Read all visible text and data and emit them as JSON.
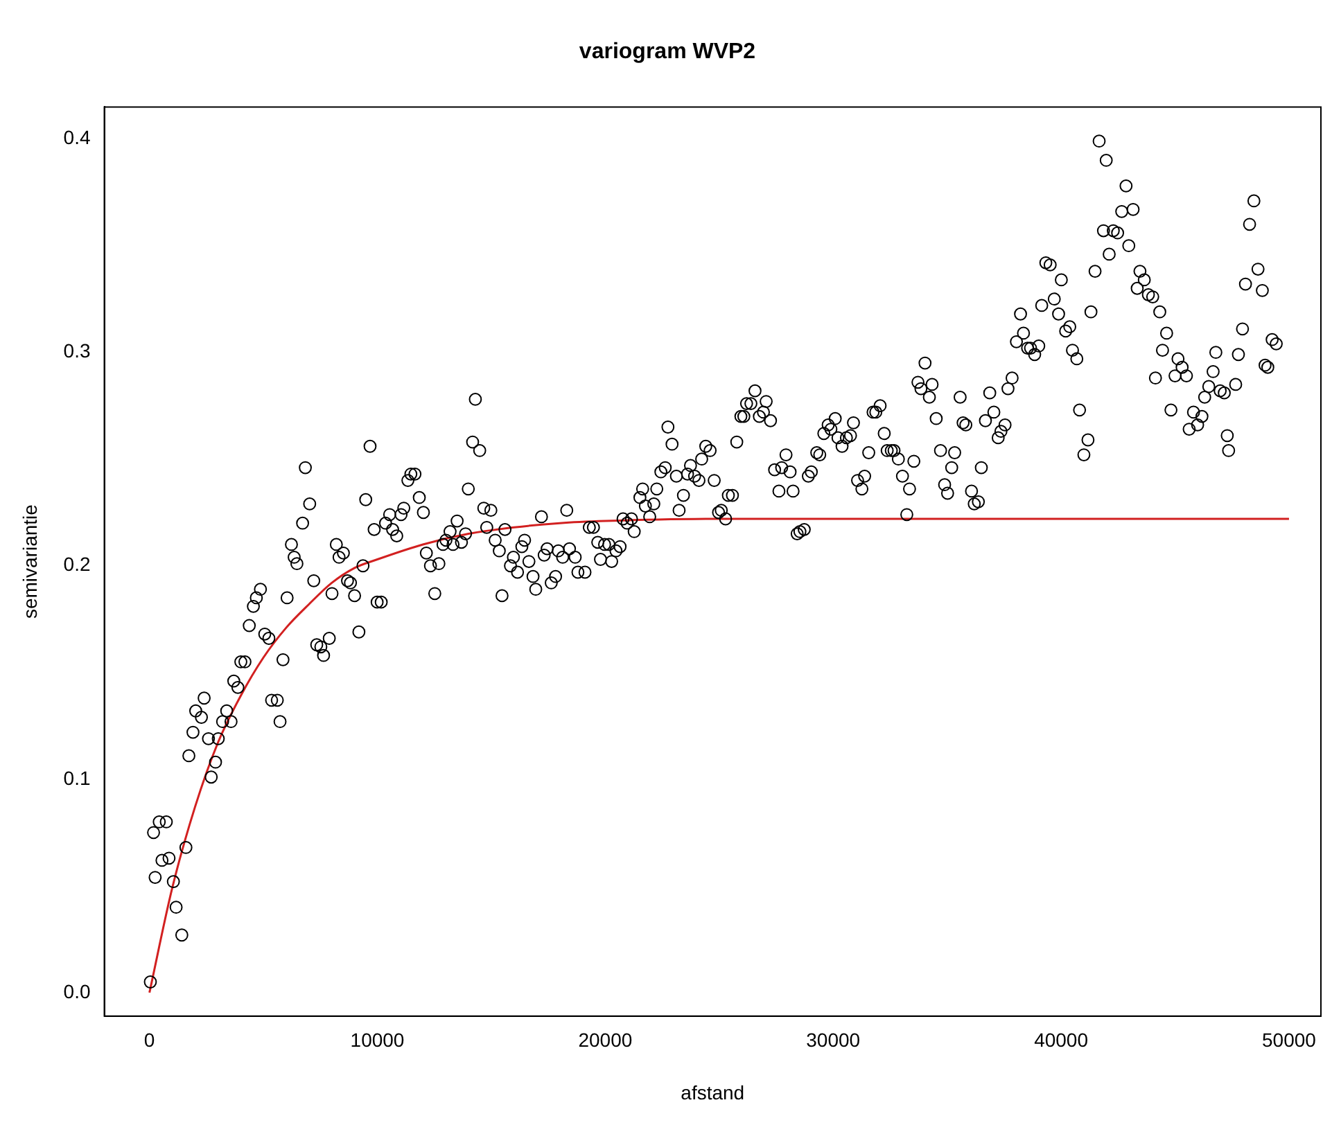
{
  "chart_data": {
    "type": "scatter",
    "title": "variogram WVP2",
    "xlabel": "afstand",
    "ylabel": "semivariantie",
    "xlim": [
      -1980,
      51400
    ],
    "xticks": [
      0,
      10000,
      20000,
      30000,
      40000,
      50000
    ],
    "ylim": [
      -0.011,
      0.415
    ],
    "yticks": [
      {
        "value": 0,
        "label": "0.0"
      },
      0.1,
      0.2,
      0.3,
      0.4
    ],
    "grid": false,
    "legend": false,
    "marker": "circle",
    "series": [
      {
        "color": "#000000",
        "x": [
          40,
          1420,
          1170,
          1050,
          1600,
          250,
          550,
          860,
          180,
          430,
          740,
          1730,
          1910,
          2030,
          2280,
          2400,
          2590,
          2710,
          2900,
          3020,
          3210,
          3390,
          3580,
          3700,
          3880,
          4010,
          4190,
          4380,
          4560,
          4690,
          4870,
          5060,
          5240,
          5360,
          5610,
          5730,
          5860,
          6040,
          6230,
          6350,
          6470,
          6720,
          6840,
          7030,
          7210,
          7340,
          7520,
          7640,
          7890,
          8010,
          8200,
          8320,
          8510,
          8690,
          8820,
          9000,
          9190,
          9370,
          9490,
          9680,
          9860,
          9990,
          10170,
          10360,
          10540,
          10670,
          10850,
          11040,
          11160,
          11340,
          11470,
          11650,
          11840,
          12020,
          12150,
          12330,
          12520,
          12700,
          12880,
          13010,
          13190,
          13320,
          13500,
          13690,
          13870,
          13990,
          14180,
          14300,
          14490,
          14670,
          14800,
          14980,
          15170,
          15350,
          15470,
          15600,
          15840,
          15970,
          16150,
          16340,
          16460,
          16650,
          16830,
          16950,
          17200,
          17320,
          17450,
          17630,
          17820,
          17940,
          18130,
          18310,
          18430,
          18680,
          18800,
          19110,
          19300,
          19480,
          19670,
          19790,
          19970,
          20160,
          20280,
          20470,
          20650,
          20780,
          20960,
          21150,
          21270,
          21520,
          21640,
          21760,
          21950,
          22130,
          22260,
          22440,
          22630,
          22750,
          22930,
          23120,
          23240,
          23430,
          23610,
          23740,
          23920,
          24110,
          24230,
          24410,
          24600,
          24780,
          24970,
          25090,
          25280,
          25400,
          25580,
          25770,
          25950,
          26080,
          26200,
          26390,
          26570,
          26760,
          26940,
          27060,
          27250,
          27430,
          27620,
          27740,
          27930,
          28110,
          28240,
          28420,
          28540,
          28730,
          28910,
          29040,
          29280,
          29410,
          29590,
          29780,
          29900,
          30090,
          30210,
          30390,
          30580,
          30760,
          30890,
          31070,
          31260,
          31380,
          31560,
          31750,
          31870,
          32060,
          32240,
          32370,
          32550,
          32670,
          32860,
          33040,
          33230,
          33350,
          33540,
          33720,
          33850,
          34030,
          34220,
          34340,
          34520,
          34710,
          34890,
          35020,
          35200,
          35330,
          35570,
          35700,
          35820,
          36070,
          36190,
          36370,
          36500,
          36680,
          36870,
          37050,
          37240,
          37360,
          37540,
          37670,
          37850,
          38040,
          38220,
          38350,
          38530,
          38660,
          38840,
          39020,
          39150,
          39330,
          39520,
          39700,
          39890,
          40010,
          40200,
          40380,
          40500,
          40690,
          40810,
          41000,
          41180,
          41310,
          41490,
          41670,
          41980,
          41860,
          42110,
          42290,
          42480,
          42660,
          42850,
          42970,
          43160,
          43340,
          43460,
          43650,
          43830,
          44020,
          44140,
          44330,
          44450,
          44630,
          44820,
          45000,
          45130,
          45310,
          45500,
          45620,
          45810,
          45990,
          46180,
          46300,
          46480,
          46670,
          46790,
          46980,
          47160,
          47290,
          47350,
          47660,
          47780,
          47960,
          48090,
          48270,
          48460,
          48640,
          48830,
          48950,
          49070,
          49260,
          49440
        ],
        "values": [
          0.005,
          0.027,
          0.04,
          0.052,
          0.068,
          0.054,
          0.062,
          0.063,
          0.075,
          0.08,
          0.08,
          0.111,
          0.122,
          0.132,
          0.129,
          0.138,
          0.119,
          0.101,
          0.108,
          0.119,
          0.127,
          0.132,
          0.127,
          0.146,
          0.143,
          0.155,
          0.155,
          0.172,
          0.181,
          0.185,
          0.189,
          0.168,
          0.166,
          0.137,
          0.137,
          0.127,
          0.156,
          0.185,
          0.21,
          0.204,
          0.201,
          0.22,
          0.246,
          0.229,
          0.193,
          0.163,
          0.162,
          0.158,
          0.166,
          0.187,
          0.21,
          0.204,
          0.206,
          0.193,
          0.192,
          0.186,
          0.169,
          0.2,
          0.231,
          0.256,
          0.217,
          0.183,
          0.183,
          0.22,
          0.224,
          0.217,
          0.214,
          0.224,
          0.227,
          0.24,
          0.243,
          0.243,
          0.232,
          0.225,
          0.206,
          0.2,
          0.187,
          0.201,
          0.21,
          0.212,
          0.216,
          0.21,
          0.221,
          0.211,
          0.215,
          0.236,
          0.258,
          0.278,
          0.254,
          0.227,
          0.218,
          0.226,
          0.212,
          0.207,
          0.186,
          0.217,
          0.2,
          0.204,
          0.197,
          0.209,
          0.212,
          0.202,
          0.195,
          0.189,
          0.223,
          0.205,
          0.208,
          0.192,
          0.195,
          0.207,
          0.204,
          0.226,
          0.208,
          0.204,
          0.197,
          0.197,
          0.218,
          0.218,
          0.211,
          0.203,
          0.21,
          0.21,
          0.202,
          0.207,
          0.209,
          0.222,
          0.22,
          0.222,
          0.216,
          0.232,
          0.236,
          0.228,
          0.223,
          0.229,
          0.236,
          0.244,
          0.246,
          0.265,
          0.257,
          0.242,
          0.226,
          0.233,
          0.243,
          0.247,
          0.242,
          0.24,
          0.25,
          0.256,
          0.254,
          0.24,
          0.225,
          0.226,
          0.222,
          0.233,
          0.233,
          0.258,
          0.27,
          0.27,
          0.276,
          0.276,
          0.282,
          0.27,
          0.272,
          0.277,
          0.268,
          0.245,
          0.235,
          0.246,
          0.252,
          0.244,
          0.235,
          0.215,
          0.216,
          0.217,
          0.242,
          0.244,
          0.253,
          0.252,
          0.262,
          0.266,
          0.264,
          0.269,
          0.26,
          0.256,
          0.26,
          0.261,
          0.267,
          0.24,
          0.236,
          0.242,
          0.253,
          0.272,
          0.272,
          0.275,
          0.262,
          0.254,
          0.254,
          0.254,
          0.25,
          0.242,
          0.224,
          0.236,
          0.249,
          0.286,
          0.283,
          0.295,
          0.279,
          0.285,
          0.269,
          0.254,
          0.238,
          0.234,
          0.246,
          0.253,
          0.279,
          0.267,
          0.266,
          0.235,
          0.229,
          0.23,
          0.246,
          0.268,
          0.281,
          0.272,
          0.26,
          0.263,
          0.266,
          0.283,
          0.288,
          0.305,
          0.318,
          0.309,
          0.302,
          0.302,
          0.299,
          0.303,
          0.322,
          0.342,
          0.341,
          0.325,
          0.318,
          0.334,
          0.31,
          0.312,
          0.301,
          0.297,
          0.273,
          0.252,
          0.259,
          0.319,
          0.338,
          0.399,
          0.39,
          0.357,
          0.346,
          0.357,
          0.356,
          0.366,
          0.378,
          0.35,
          0.367,
          0.33,
          0.338,
          0.334,
          0.327,
          0.326,
          0.288,
          0.319,
          0.301,
          0.309,
          0.273,
          0.289,
          0.297,
          0.293,
          0.289,
          0.264,
          0.272,
          0.266,
          0.27,
          0.279,
          0.284,
          0.291,
          0.3,
          0.282,
          0.281,
          0.261,
          0.254,
          0.285,
          0.299,
          0.311,
          0.332,
          0.36,
          0.371,
          0.339,
          0.329,
          0.294,
          0.293,
          0.306,
          0.304
        ]
      },
      {
        "type": "line",
        "color": "#d22020",
        "marker": "none",
        "x": [
          0,
          1000,
          2000,
          3000,
          4000,
          5000,
          6000,
          7000,
          8000,
          9000,
          10000,
          12000,
          14000,
          16000,
          18000,
          20000,
          25000,
          30000,
          40000,
          50000
        ],
        "values": [
          0,
          0.049,
          0.087,
          0.117,
          0.139,
          0.157,
          0.171,
          0.182,
          0.192,
          0.199,
          0.203,
          0.21,
          0.215,
          0.218,
          0.22,
          0.221,
          0.222,
          0.222,
          0.222,
          0.222
        ]
      }
    ]
  }
}
